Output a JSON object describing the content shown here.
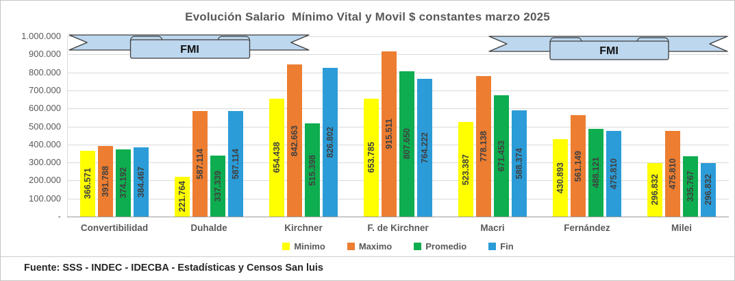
{
  "title": "Evolución Salario  Mínimo Vital y Movil $ constantes marzo 2025",
  "footer": "Fuente: SSS - INDEC - IDECBA - Estadísticas y Censos San luis",
  "annotations": {
    "ribbons": [
      {
        "label": "FMI"
      },
      {
        "label": "FMI"
      }
    ],
    "ribbon_fill": "#BDD7EE",
    "ribbon_stroke": "#3d3d3d"
  },
  "chart_data": {
    "type": "bar",
    "title": "Evolución Salario  Mínimo Vital y Movil $ constantes marzo 2025",
    "categories": [
      "Convertibilidad",
      "Duhalde",
      "Kirchner",
      "F. de Kirchner",
      "Macri",
      "Fernández",
      "Milei"
    ],
    "series": [
      {
        "name": "Minimo",
        "color": "#FFFF00",
        "values": [
          366571,
          221764,
          654438,
          653785,
          523387,
          430893,
          296832
        ]
      },
      {
        "name": "Maximo",
        "color": "#ED7D31",
        "values": [
          391788,
          587114,
          842663,
          915511,
          778138,
          561149,
          475810
        ]
      },
      {
        "name": "Promedio",
        "color": "#0EAD4F",
        "values": [
          374192,
          337339,
          515398,
          807650,
          671453,
          488121,
          335767
        ]
      },
      {
        "name": "Fin",
        "color": "#2B9CD8",
        "values": [
          384467,
          587114,
          826802,
          764222,
          588374,
          475810,
          296832
        ]
      }
    ],
    "y_axis": {
      "min": 0,
      "max": 1000000,
      "step": 100000,
      "ticks": [
        "1.000.000",
        "900.000",
        "800.000",
        "700.000",
        "600.000",
        "500.000",
        "400.000",
        "300.000",
        "200.000",
        "100.000",
        "-"
      ]
    },
    "xlabel": "",
    "ylabel": "",
    "grid": true,
    "legend_position": "bottom",
    "data_label_color": "#404040",
    "grid_color": "#D9D9D9"
  }
}
